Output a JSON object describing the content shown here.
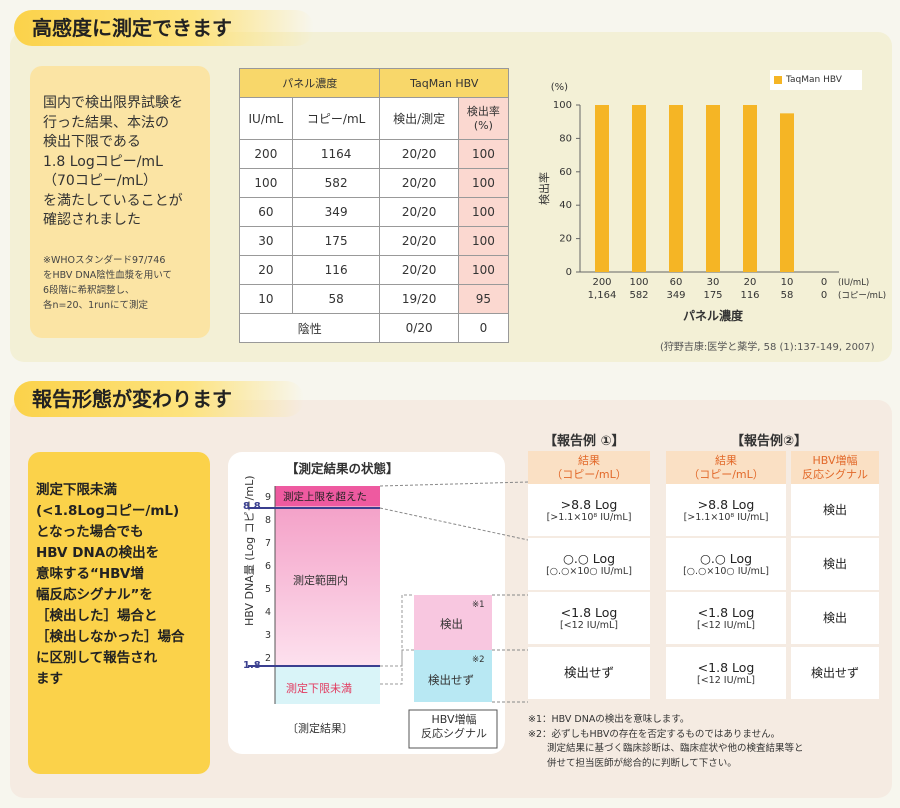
{
  "section1": {
    "heading": "高感度に測定できます",
    "note_main": "国内で検出限界試験を\n行った結果、本法の\n検出下限である\n1.8 Logコピー/mL\n（70コピー/mL）\nを満たしていることが\n確認されました",
    "note_sub": "※WHOスタンダード97/746\nをHBV DNA陰性血漿を用いて\n6段階に希釈調整し、\n各n=20、1runにて測定",
    "table": {
      "group1": "パネル濃度",
      "group2": "TaqMan HBV",
      "cols": [
        "IU/mL",
        "コピー/mL",
        "検出/測定",
        "検出率\n(%)"
      ],
      "rows": [
        [
          "200",
          "1164",
          "20/20",
          "100"
        ],
        [
          "100",
          "582",
          "20/20",
          "100"
        ],
        [
          "60",
          "349",
          "20/20",
          "100"
        ],
        [
          "30",
          "175",
          "20/20",
          "100"
        ],
        [
          "20",
          "116",
          "20/20",
          "100"
        ],
        [
          "10",
          "58",
          "19/20",
          "95"
        ]
      ],
      "neg_label": "陰性",
      "neg_detect": "0/20",
      "neg_rate": "0"
    },
    "citation": "(狩野吉康:医学と薬学, 58 (1):137-149, 2007)"
  },
  "chart_data": {
    "type": "bar",
    "categories": [
      "200",
      "100",
      "60",
      "30",
      "20",
      "10",
      "0"
    ],
    "categories_copies": [
      "1,164",
      "582",
      "349",
      "175",
      "116",
      "58",
      "0"
    ],
    "unit_iu": "(IU/mL)",
    "unit_copies": "(コピー/mL)",
    "series": [
      {
        "name": "TaqMan HBV",
        "values": [
          100,
          100,
          100,
          100,
          100,
          95,
          0
        ]
      }
    ],
    "xlabel": "パネル濃度",
    "ylabel": "検出率",
    "yunit": "(%)",
    "ylim": [
      0,
      100
    ],
    "yticks": [
      0,
      20,
      40,
      60,
      80,
      100
    ],
    "bar_color": "#f5b525",
    "legend_position": "top-right"
  },
  "section2": {
    "heading": "報告形態が変わります",
    "bullet_text": "測定下限未満\n(<1.8Logコピー/mL)\nとなった場合でも\nHBV DNAの検出を\n意味する“HBV増\n幅反応シグナル”を\n［検出した］場合と\n［検出しなかった］場合\nに区別して報告され\nます",
    "state_title": "【測定結果の状態】",
    "ylabel": "HBV DNA量 (Log コピー/mL)",
    "yticks": [
      "9",
      "8",
      "7",
      "6",
      "5",
      "4",
      "3",
      "2"
    ],
    "mark_upper": "8.8",
    "mark_lower": "1.8",
    "upper_label": "測定上限を超えた",
    "mid_label": "測定範囲内",
    "lower_label": "測定下限未満",
    "detect_label": "検出",
    "nodetect_label": "検出せず",
    "note1_mark": "※1",
    "note2_mark": "※2",
    "result_caption": "〔測定結果〕",
    "signal_caption": "HBV増幅\n反応シグナル",
    "report1_title": "【報告例 ①】",
    "report2_title": "【報告例②】",
    "col_result": "結果\n（コピー/mL）",
    "col_signal": "HBV増幅\n反応シグナル",
    "report1": [
      {
        "main": ">8.8 Log",
        "sub": "[>1.1×10⁸ IU/mL]"
      },
      {
        "main": "○.○ Log",
        "sub": "[○.○×10○ IU/mL]"
      },
      {
        "main": "<1.8 Log",
        "sub": "[<12 IU/mL]"
      },
      {
        "main": "検出せず",
        "sub": ""
      }
    ],
    "report2": [
      {
        "main": ">8.8 Log",
        "sub": "[>1.1×10⁸ IU/mL]",
        "signal": "検出"
      },
      {
        "main": "○.○ Log",
        "sub": "[○.○×10○ IU/mL]",
        "signal": "検出"
      },
      {
        "main": "<1.8 Log",
        "sub": "[<12 IU/mL]",
        "signal": "検出"
      },
      {
        "main": "<1.8 Log",
        "sub": "[<12 IU/mL]",
        "signal": "検出せず"
      }
    ],
    "footnotes": "※1：HBV DNAの検出を意味します。\n※2：必ずしもHBVの存在を否定するものではありません。\n　　測定結果に基づく臨床診断は、臨床症状や他の検査結果等と\n　　併せて担当医師が総合的に判断して下さい。"
  }
}
